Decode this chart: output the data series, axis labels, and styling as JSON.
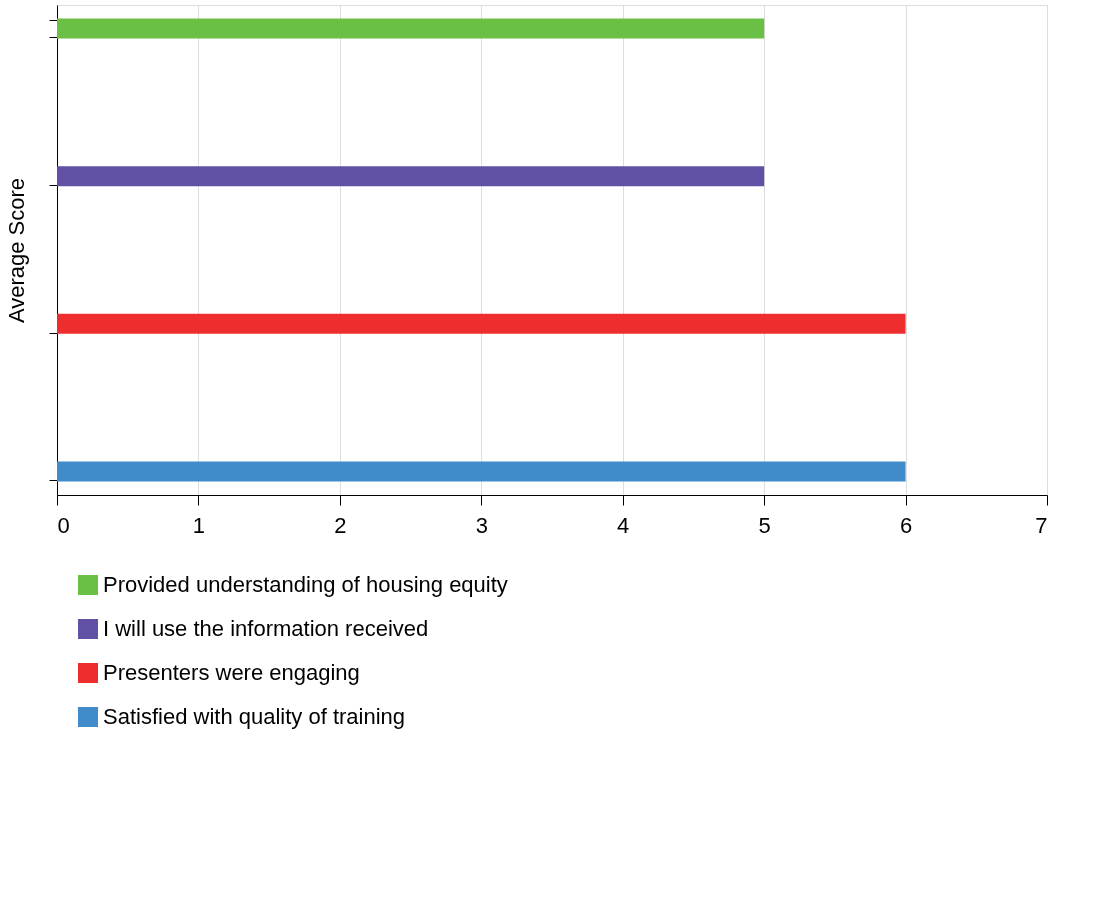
{
  "chart_data": {
    "type": "bar",
    "orientation": "horizontal",
    "ylabel": "Average Score",
    "categories": [
      null,
      null,
      null,
      null
    ],
    "series": [
      {
        "name": "Provided understanding of housing equity",
        "color": "#6abf45",
        "values": [
          5,
          null,
          null,
          null
        ]
      },
      {
        "name": "I will use the information received",
        "color": "#6150a3",
        "values": [
          null,
          5,
          null,
          null
        ]
      },
      {
        "name": "Presenters were engaging",
        "color": "#ee2e2e",
        "values": [
          null,
          null,
          6,
          null
        ]
      },
      {
        "name": "Satisfied with quality of training",
        "color": "#428bca",
        "values": [
          null,
          null,
          null,
          6
        ]
      }
    ],
    "xlim": [
      0,
      7
    ],
    "xticks": [
      0,
      1,
      2,
      3,
      4,
      5,
      6,
      7
    ],
    "grid": "x",
    "legend": "bottom",
    "tick_labels": "x"
  }
}
